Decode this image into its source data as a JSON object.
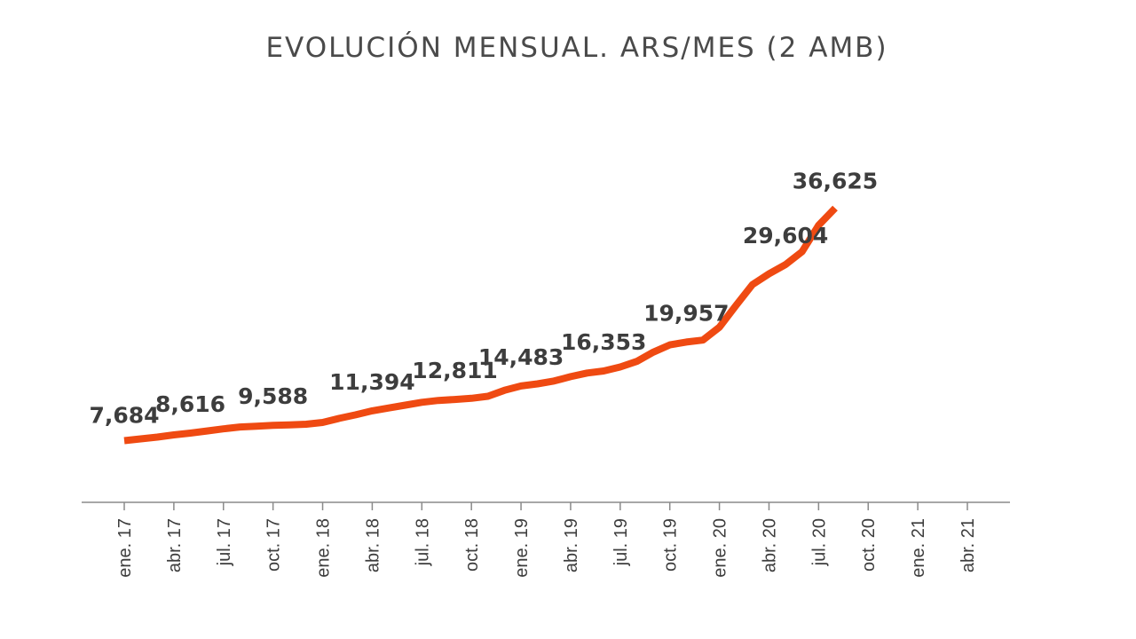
{
  "chart_data": {
    "type": "line",
    "title": "EVOLUCIÓN MENSUAL. ARS/MES (2 AMB)",
    "xlabel": "",
    "ylabel": "",
    "ylim": [
      0,
      40000
    ],
    "grid": false,
    "legend": "none",
    "line_color": "#ef4a12",
    "tick_labels": [
      "ene. 17",
      "abr. 17",
      "jul. 17",
      "oct. 17",
      "ene. 18",
      "abr. 18",
      "jul. 18",
      "oct. 18",
      "ene. 19",
      "abr. 19",
      "jul. 19",
      "oct. 19",
      "ene. 20",
      "abr. 20",
      "jul. 20",
      "oct. 20",
      "ene. 21",
      "abr. 21"
    ],
    "series": [
      {
        "values": [
          7684,
          7900,
          8120,
          8400,
          8616,
          8880,
          9150,
          9380,
          9470,
          9588,
          9640,
          9720,
          9950,
          10450,
          10900,
          11394,
          11750,
          12100,
          12450,
          12690,
          12811,
          12950,
          13200,
          13950,
          14483,
          14750,
          15100,
          15650,
          16100,
          16353,
          16850,
          17550,
          18700,
          19600,
          19957,
          20200,
          21800,
          24500,
          27100,
          28450,
          29604,
          31200,
          34500,
          36625
        ]
      }
    ],
    "data_labels": [
      {
        "index": 0,
        "text": "7,684"
      },
      {
        "index": 4,
        "text": "8,616"
      },
      {
        "index": 9,
        "text": "9,588"
      },
      {
        "index": 15,
        "text": "11,394"
      },
      {
        "index": 20,
        "text": "12,811"
      },
      {
        "index": 24,
        "text": "14,483"
      },
      {
        "index": 29,
        "text": "16,353"
      },
      {
        "index": 34,
        "text": "19,957"
      },
      {
        "index": 40,
        "text": "29,604"
      },
      {
        "index": 43,
        "text": "36,625"
      }
    ]
  }
}
